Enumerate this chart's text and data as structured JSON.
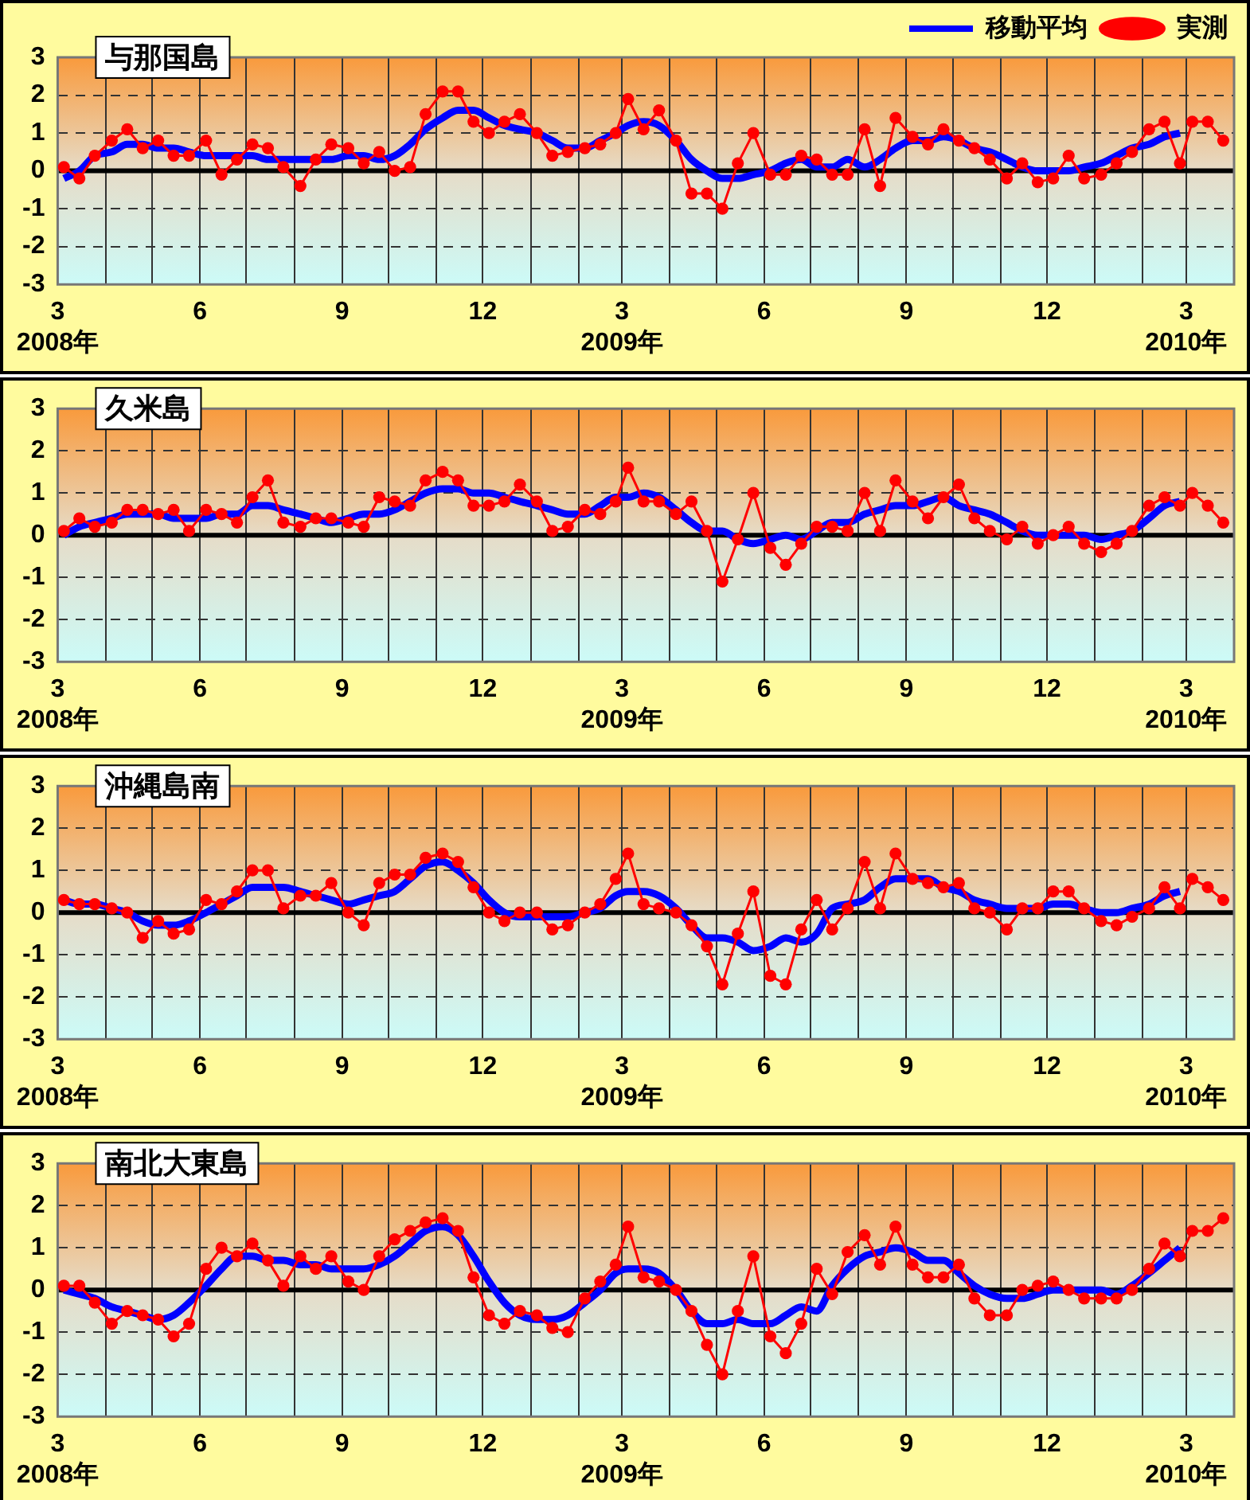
{
  "chart_data": [
    {
      "type": "line",
      "title": "与那国島",
      "legend": "top right",
      "grid": true,
      "x": [
        "2008-03-05",
        "2008-03-15",
        "2008-03-25",
        "2008-04-05",
        "2008-04-15",
        "2008-04-25",
        "2008-05-05",
        "2008-05-15",
        "2008-05-25",
        "2008-06-05",
        "2008-06-15",
        "2008-06-25",
        "2008-07-05",
        "2008-07-15",
        "2008-07-25",
        "2008-08-05",
        "2008-08-15",
        "2008-08-25",
        "2008-09-05",
        "2008-09-15",
        "2008-09-25",
        "2008-10-05",
        "2008-10-15",
        "2008-10-25",
        "2008-11-05",
        "2008-11-15",
        "2008-11-25",
        "2008-12-05",
        "2008-12-15",
        "2008-12-25",
        "2009-01-05",
        "2009-01-15",
        "2009-01-25",
        "2009-02-05",
        "2009-02-15",
        "2009-02-25",
        "2009-03-05",
        "2009-03-15",
        "2009-03-25",
        "2009-04-05",
        "2009-04-15",
        "2009-04-25",
        "2009-05-05",
        "2009-05-15",
        "2009-05-25",
        "2009-06-05",
        "2009-06-15",
        "2009-06-25",
        "2009-07-05",
        "2009-07-15",
        "2009-07-25",
        "2009-08-05",
        "2009-08-15",
        "2009-08-25",
        "2009-09-05",
        "2009-09-15",
        "2009-09-25",
        "2009-10-05",
        "2009-10-15",
        "2009-10-25",
        "2009-11-05",
        "2009-11-15",
        "2009-11-25",
        "2009-12-05",
        "2009-12-15",
        "2009-12-25",
        "2010-01-05",
        "2010-01-15",
        "2010-01-25",
        "2010-02-05",
        "2010-02-15",
        "2010-02-25",
        "2010-03-05",
        "2010-03-15",
        "2010-03-25"
      ],
      "xlim": [
        "2008-03-01",
        "2010-04-01"
      ],
      "xticks": [
        {
          "value": "2008-03-01",
          "label": "3\n2008年"
        },
        {
          "value": "2008-04-01",
          "label": null
        },
        {
          "value": "2008-05-01",
          "label": null
        },
        {
          "value": "2008-06-01",
          "label": "6"
        },
        {
          "value": "2008-07-01",
          "label": null
        },
        {
          "value": "2008-08-01",
          "label": null
        },
        {
          "value": "2008-09-01",
          "label": "9"
        },
        {
          "value": "2008-10-01",
          "label": null
        },
        {
          "value": "2008-11-01",
          "label": null
        },
        {
          "value": "2008-12-01",
          "label": "12"
        },
        {
          "value": "2009-01-01",
          "label": null
        },
        {
          "value": "2009-02-01",
          "label": null
        },
        {
          "value": "2009-03-01",
          "label": "3\n2009年"
        },
        {
          "value": "2009-04-01",
          "label": null
        },
        {
          "value": "2009-05-01",
          "label": null
        },
        {
          "value": "2009-06-01",
          "label": "6"
        },
        {
          "value": "2009-07-01",
          "label": null
        },
        {
          "value": "2009-08-01",
          "label": null
        },
        {
          "value": "2009-09-01",
          "label": "9"
        },
        {
          "value": "2009-10-01",
          "label": null
        },
        {
          "value": "2009-11-01",
          "label": null
        },
        {
          "value": "2009-12-01",
          "label": "12"
        },
        {
          "value": "2010-01-01",
          "label": null
        },
        {
          "value": "2010-02-01",
          "label": null
        },
        {
          "value": "2010-03-01",
          "label": "3\n2010年"
        },
        {
          "value": "2010-04-01",
          "label": null
        }
      ],
      "ylim": [
        -3,
        3
      ],
      "yticks": [
        -3,
        -2,
        -1,
        0,
        1,
        2,
        3
      ],
      "ref_lines": [
        {
          "axis": "y",
          "value": 0,
          "color": "#000000"
        }
      ],
      "series": [
        {
          "name": "移動平均",
          "type": "line",
          "color": "#0000ff",
          "marker": "none",
          "values": [
            -0.2,
            0.0,
            0.4,
            0.5,
            0.7,
            0.7,
            0.6,
            0.6,
            0.5,
            0.4,
            0.4,
            0.4,
            0.4,
            0.3,
            0.3,
            0.3,
            0.3,
            0.3,
            0.4,
            0.4,
            0.3,
            0.4,
            0.7,
            1.1,
            1.4,
            1.6,
            1.6,
            1.4,
            1.2,
            1.1,
            1.0,
            0.8,
            0.6,
            0.6,
            0.8,
            1.0,
            1.2,
            1.3,
            1.2,
            0.8,
            0.3,
            0.0,
            -0.2,
            -0.2,
            -0.1,
            0.0,
            0.2,
            0.3,
            0.1,
            0.1,
            0.3,
            0.1,
            0.3,
            0.6,
            0.8,
            0.8,
            0.9,
            0.8,
            0.6,
            0.5,
            0.3,
            0.1,
            0.0,
            0.0,
            0.0,
            0.1,
            0.2,
            0.4,
            0.6,
            0.7,
            0.9,
            1.0,
            null,
            null,
            null
          ]
        },
        {
          "name": "実測",
          "type": "line",
          "color": "#ff0000",
          "marker": "circle",
          "values": [
            0.1,
            -0.2,
            0.4,
            0.8,
            1.1,
            0.6,
            0.8,
            0.4,
            0.4,
            0.8,
            -0.1,
            0.3,
            0.7,
            0.6,
            0.1,
            -0.4,
            0.3,
            0.7,
            0.6,
            0.2,
            0.5,
            0.0,
            0.1,
            1.5,
            2.1,
            2.1,
            1.3,
            1.0,
            1.3,
            1.5,
            1.0,
            0.4,
            0.5,
            0.6,
            0.7,
            1.0,
            1.9,
            1.1,
            1.6,
            0.8,
            -0.6,
            -0.6,
            -1.0,
            0.2,
            1.0,
            -0.1,
            -0.1,
            0.4,
            0.3,
            -0.1,
            -0.1,
            1.1,
            -0.4,
            1.4,
            0.9,
            0.7,
            1.1,
            0.8,
            0.6,
            0.3,
            -0.2,
            0.2,
            -0.3,
            -0.2,
            0.4,
            -0.2,
            -0.1,
            0.2,
            0.5,
            1.1,
            1.3,
            0.2,
            1.3,
            1.3,
            0.8
          ]
        }
      ]
    },
    {
      "type": "line",
      "title": "久米島",
      "grid": true,
      "x": [
        "2008-03-05",
        "2008-03-15",
        "2008-03-25",
        "2008-04-05",
        "2008-04-15",
        "2008-04-25",
        "2008-05-05",
        "2008-05-15",
        "2008-05-25",
        "2008-06-05",
        "2008-06-15",
        "2008-06-25",
        "2008-07-05",
        "2008-07-15",
        "2008-07-25",
        "2008-08-05",
        "2008-08-15",
        "2008-08-25",
        "2008-09-05",
        "2008-09-15",
        "2008-09-25",
        "2008-10-05",
        "2008-10-15",
        "2008-10-25",
        "2008-11-05",
        "2008-11-15",
        "2008-11-25",
        "2008-12-05",
        "2008-12-15",
        "2008-12-25",
        "2009-01-05",
        "2009-01-15",
        "2009-01-25",
        "2009-02-05",
        "2009-02-15",
        "2009-02-25",
        "2009-03-05",
        "2009-03-15",
        "2009-03-25",
        "2009-04-05",
        "2009-04-15",
        "2009-04-25",
        "2009-05-05",
        "2009-05-15",
        "2009-05-25",
        "2009-06-05",
        "2009-06-15",
        "2009-06-25",
        "2009-07-05",
        "2009-07-15",
        "2009-07-25",
        "2009-08-05",
        "2009-08-15",
        "2009-08-25",
        "2009-09-05",
        "2009-09-15",
        "2009-09-25",
        "2009-10-05",
        "2009-10-15",
        "2009-10-25",
        "2009-11-05",
        "2009-11-15",
        "2009-11-25",
        "2009-12-05",
        "2009-12-15",
        "2009-12-25",
        "2010-01-05",
        "2010-01-15",
        "2010-01-25",
        "2010-02-05",
        "2010-02-15",
        "2010-02-25",
        "2010-03-05",
        "2010-03-15",
        "2010-03-25"
      ],
      "xlim": [
        "2008-03-01",
        "2010-04-01"
      ],
      "xticks": [
        {
          "value": "2008-03-01",
          "label": "3\n2008年"
        },
        {
          "value": "2008-04-01",
          "label": null
        },
        {
          "value": "2008-05-01",
          "label": null
        },
        {
          "value": "2008-06-01",
          "label": "6"
        },
        {
          "value": "2008-07-01",
          "label": null
        },
        {
          "value": "2008-08-01",
          "label": null
        },
        {
          "value": "2008-09-01",
          "label": "9"
        },
        {
          "value": "2008-10-01",
          "label": null
        },
        {
          "value": "2008-11-01",
          "label": null
        },
        {
          "value": "2008-12-01",
          "label": "12"
        },
        {
          "value": "2009-01-01",
          "label": null
        },
        {
          "value": "2009-02-01",
          "label": null
        },
        {
          "value": "2009-03-01",
          "label": "3\n2009年"
        },
        {
          "value": "2009-04-01",
          "label": null
        },
        {
          "value": "2009-05-01",
          "label": null
        },
        {
          "value": "2009-06-01",
          "label": "6"
        },
        {
          "value": "2009-07-01",
          "label": null
        },
        {
          "value": "2009-08-01",
          "label": null
        },
        {
          "value": "2009-09-01",
          "label": "9"
        },
        {
          "value": "2009-10-01",
          "label": null
        },
        {
          "value": "2009-11-01",
          "label": null
        },
        {
          "value": "2009-12-01",
          "label": "12"
        },
        {
          "value": "2010-01-01",
          "label": null
        },
        {
          "value": "2010-02-01",
          "label": null
        },
        {
          "value": "2010-03-01",
          "label": "3\n2010年"
        },
        {
          "value": "2010-04-01",
          "label": null
        }
      ],
      "ylim": [
        -3,
        3
      ],
      "yticks": [
        -3,
        -2,
        -1,
        0,
        1,
        2,
        3
      ],
      "ref_lines": [
        {
          "axis": "y",
          "value": 0,
          "color": "#000000"
        }
      ],
      "series": [
        {
          "type": "line",
          "color": "#0000ff",
          "marker": "none",
          "values": [
            0.0,
            0.2,
            0.3,
            0.4,
            0.5,
            0.5,
            0.5,
            0.4,
            0.4,
            0.4,
            0.5,
            0.5,
            0.7,
            0.7,
            0.6,
            0.5,
            0.4,
            0.3,
            0.4,
            0.5,
            0.5,
            0.6,
            0.8,
            1.0,
            1.1,
            1.1,
            1.0,
            1.0,
            0.9,
            0.8,
            0.7,
            0.6,
            0.5,
            0.5,
            0.7,
            0.9,
            0.9,
            1.0,
            0.9,
            0.6,
            0.3,
            0.1,
            0.1,
            -0.1,
            -0.2,
            -0.1,
            0.0,
            -0.1,
            0.1,
            0.3,
            0.3,
            0.5,
            0.6,
            0.7,
            0.7,
            0.8,
            0.9,
            0.7,
            0.6,
            0.5,
            0.3,
            0.1,
            0.0,
            0.0,
            0.0,
            0.0,
            -0.1,
            0.0,
            0.1,
            0.4,
            0.7,
            0.8,
            null,
            null,
            null
          ]
        },
        {
          "type": "line",
          "color": "#ff0000",
          "marker": "circle",
          "values": [
            0.1,
            0.4,
            0.2,
            0.3,
            0.6,
            0.6,
            0.5,
            0.6,
            0.1,
            0.6,
            0.5,
            0.3,
            0.9,
            1.3,
            0.3,
            0.2,
            0.4,
            0.4,
            0.3,
            0.2,
            0.9,
            0.8,
            0.7,
            1.3,
            1.5,
            1.3,
            0.7,
            0.7,
            0.8,
            1.2,
            0.8,
            0.1,
            0.2,
            0.6,
            0.5,
            0.8,
            1.6,
            0.8,
            0.8,
            0.5,
            0.8,
            0.1,
            -1.1,
            -0.1,
            1.0,
            -0.3,
            -0.7,
            -0.2,
            0.2,
            0.2,
            0.1,
            1.0,
            0.1,
            1.3,
            0.8,
            0.4,
            0.9,
            1.2,
            0.4,
            0.1,
            -0.1,
            0.2,
            -0.2,
            0.0,
            0.2,
            -0.2,
            -0.4,
            -0.2,
            0.1,
            0.7,
            0.9,
            0.7,
            1.0,
            0.7,
            0.3
          ]
        }
      ]
    },
    {
      "type": "line",
      "title": "沖縄島南",
      "grid": true,
      "x": [
        "2008-03-05",
        "2008-03-15",
        "2008-03-25",
        "2008-04-05",
        "2008-04-15",
        "2008-04-25",
        "2008-05-05",
        "2008-05-15",
        "2008-05-25",
        "2008-06-05",
        "2008-06-15",
        "2008-06-25",
        "2008-07-05",
        "2008-07-15",
        "2008-07-25",
        "2008-08-05",
        "2008-08-15",
        "2008-08-25",
        "2008-09-05",
        "2008-09-15",
        "2008-09-25",
        "2008-10-05",
        "2008-10-15",
        "2008-10-25",
        "2008-11-05",
        "2008-11-15",
        "2008-11-25",
        "2008-12-05",
        "2008-12-15",
        "2008-12-25",
        "2009-01-05",
        "2009-01-15",
        "2009-01-25",
        "2009-02-05",
        "2009-02-15",
        "2009-02-25",
        "2009-03-05",
        "2009-03-15",
        "2009-03-25",
        "2009-04-05",
        "2009-04-15",
        "2009-04-25",
        "2009-05-05",
        "2009-05-15",
        "2009-05-25",
        "2009-06-05",
        "2009-06-15",
        "2009-06-25",
        "2009-07-05",
        "2009-07-15",
        "2009-07-25",
        "2009-08-05",
        "2009-08-15",
        "2009-08-25",
        "2009-09-05",
        "2009-09-15",
        "2009-09-25",
        "2009-10-05",
        "2009-10-15",
        "2009-10-25",
        "2009-11-05",
        "2009-11-15",
        "2009-11-25",
        "2009-12-05",
        "2009-12-15",
        "2009-12-25",
        "2010-01-05",
        "2010-01-15",
        "2010-01-25",
        "2010-02-05",
        "2010-02-15",
        "2010-02-25",
        "2010-03-05",
        "2010-03-15",
        "2010-03-25"
      ],
      "xlim": [
        "2008-03-01",
        "2010-04-01"
      ],
      "xticks": [
        {
          "value": "2008-03-01",
          "label": "3\n2008年"
        },
        {
          "value": "2008-04-01",
          "label": null
        },
        {
          "value": "2008-05-01",
          "label": null
        },
        {
          "value": "2008-06-01",
          "label": "6"
        },
        {
          "value": "2008-07-01",
          "label": null
        },
        {
          "value": "2008-08-01",
          "label": null
        },
        {
          "value": "2008-09-01",
          "label": "9"
        },
        {
          "value": "2008-10-01",
          "label": null
        },
        {
          "value": "2008-11-01",
          "label": null
        },
        {
          "value": "2008-12-01",
          "label": "12"
        },
        {
          "value": "2009-01-01",
          "label": null
        },
        {
          "value": "2009-02-01",
          "label": null
        },
        {
          "value": "2009-03-01",
          "label": "3\n2009年"
        },
        {
          "value": "2009-04-01",
          "label": null
        },
        {
          "value": "2009-05-01",
          "label": null
        },
        {
          "value": "2009-06-01",
          "label": "6"
        },
        {
          "value": "2009-07-01",
          "label": null
        },
        {
          "value": "2009-08-01",
          "label": null
        },
        {
          "value": "2009-09-01",
          "label": "9"
        },
        {
          "value": "2009-10-01",
          "label": null
        },
        {
          "value": "2009-11-01",
          "label": null
        },
        {
          "value": "2009-12-01",
          "label": "12"
        },
        {
          "value": "2010-01-01",
          "label": null
        },
        {
          "value": "2010-02-01",
          "label": null
        },
        {
          "value": "2010-03-01",
          "label": "3\n2010年"
        },
        {
          "value": "2010-04-01",
          "label": null
        }
      ],
      "ylim": [
        -3,
        3
      ],
      "yticks": [
        -3,
        -2,
        -1,
        0,
        1,
        2,
        3
      ],
      "ref_lines": [
        {
          "axis": "y",
          "value": 0,
          "color": "#000000"
        }
      ],
      "series": [
        {
          "type": "line",
          "color": "#0000ff",
          "marker": "none",
          "values": [
            0.3,
            0.2,
            0.2,
            0.1,
            0.0,
            -0.2,
            -0.3,
            -0.3,
            -0.2,
            0.0,
            0.2,
            0.4,
            0.6,
            0.6,
            0.6,
            0.5,
            0.4,
            0.3,
            0.2,
            0.3,
            0.4,
            0.5,
            0.8,
            1.1,
            1.2,
            1.0,
            0.7,
            0.3,
            0.0,
            -0.1,
            -0.1,
            -0.1,
            -0.1,
            0.0,
            0.1,
            0.4,
            0.5,
            0.5,
            0.4,
            0.1,
            -0.3,
            -0.6,
            -0.6,
            -0.7,
            -0.9,
            -0.8,
            -0.6,
            -0.7,
            -0.5,
            0.1,
            0.2,
            0.3,
            0.6,
            0.8,
            0.8,
            0.8,
            0.6,
            0.5,
            0.3,
            0.2,
            0.1,
            0.1,
            0.1,
            0.2,
            0.2,
            0.1,
            0.0,
            0.0,
            0.1,
            0.2,
            0.4,
            0.5,
            null,
            null,
            null
          ]
        },
        {
          "type": "line",
          "color": "#ff0000",
          "marker": "circle",
          "values": [
            0.3,
            0.2,
            0.2,
            0.1,
            0.0,
            -0.6,
            -0.2,
            -0.5,
            -0.4,
            0.3,
            0.2,
            0.5,
            1.0,
            1.0,
            0.1,
            0.4,
            0.4,
            0.7,
            0.0,
            -0.3,
            0.7,
            0.9,
            0.9,
            1.3,
            1.4,
            1.2,
            0.6,
            0.0,
            -0.2,
            0.0,
            0.0,
            -0.4,
            -0.3,
            0.0,
            0.2,
            0.8,
            1.4,
            0.2,
            0.1,
            0.0,
            -0.3,
            -0.8,
            -1.7,
            -0.5,
            0.5,
            -1.5,
            -1.7,
            -0.4,
            0.3,
            -0.4,
            0.1,
            1.2,
            0.1,
            1.4,
            0.8,
            0.7,
            0.6,
            0.7,
            0.1,
            0.0,
            -0.4,
            0.1,
            0.1,
            0.5,
            0.5,
            0.1,
            -0.2,
            -0.3,
            -0.1,
            0.1,
            0.6,
            0.1,
            0.8,
            0.6,
            0.3
          ]
        }
      ]
    },
    {
      "type": "line",
      "title": "南北大東島",
      "grid": true,
      "x": [
        "2008-03-05",
        "2008-03-15",
        "2008-03-25",
        "2008-04-05",
        "2008-04-15",
        "2008-04-25",
        "2008-05-05",
        "2008-05-15",
        "2008-05-25",
        "2008-06-05",
        "2008-06-15",
        "2008-06-25",
        "2008-07-05",
        "2008-07-15",
        "2008-07-25",
        "2008-08-05",
        "2008-08-15",
        "2008-08-25",
        "2008-09-05",
        "2008-09-15",
        "2008-09-25",
        "2008-10-05",
        "2008-10-15",
        "2008-10-25",
        "2008-11-05",
        "2008-11-15",
        "2008-11-25",
        "2008-12-05",
        "2008-12-15",
        "2008-12-25",
        "2009-01-05",
        "2009-01-15",
        "2009-01-25",
        "2009-02-05",
        "2009-02-15",
        "2009-02-25",
        "2009-03-05",
        "2009-03-15",
        "2009-03-25",
        "2009-04-05",
        "2009-04-15",
        "2009-04-25",
        "2009-05-05",
        "2009-05-15",
        "2009-05-25",
        "2009-06-05",
        "2009-06-15",
        "2009-06-25",
        "2009-07-05",
        "2009-07-15",
        "2009-07-25",
        "2009-08-05",
        "2009-08-15",
        "2009-08-25",
        "2009-09-05",
        "2009-09-15",
        "2009-09-25",
        "2009-10-05",
        "2009-10-15",
        "2009-10-25",
        "2009-11-05",
        "2009-11-15",
        "2009-11-25",
        "2009-12-05",
        "2009-12-15",
        "2009-12-25",
        "2010-01-05",
        "2010-01-15",
        "2010-01-25",
        "2010-02-05",
        "2010-02-15",
        "2010-02-25",
        "2010-03-05",
        "2010-03-15",
        "2010-03-25"
      ],
      "xlim": [
        "2008-03-01",
        "2010-04-01"
      ],
      "xticks": [
        {
          "value": "2008-03-01",
          "label": "3\n2008年"
        },
        {
          "value": "2008-04-01",
          "label": null
        },
        {
          "value": "2008-05-01",
          "label": null
        },
        {
          "value": "2008-06-01",
          "label": "6"
        },
        {
          "value": "2008-07-01",
          "label": null
        },
        {
          "value": "2008-08-01",
          "label": null
        },
        {
          "value": "2008-09-01",
          "label": "9"
        },
        {
          "value": "2008-10-01",
          "label": null
        },
        {
          "value": "2008-11-01",
          "label": null
        },
        {
          "value": "2008-12-01",
          "label": "12"
        },
        {
          "value": "2009-01-01",
          "label": null
        },
        {
          "value": "2009-02-01",
          "label": null
        },
        {
          "value": "2009-03-01",
          "label": "3\n2009年"
        },
        {
          "value": "2009-04-01",
          "label": null
        },
        {
          "value": "2009-05-01",
          "label": null
        },
        {
          "value": "2009-06-01",
          "label": "6"
        },
        {
          "value": "2009-07-01",
          "label": null
        },
        {
          "value": "2009-08-01",
          "label": null
        },
        {
          "value": "2009-09-01",
          "label": "9"
        },
        {
          "value": "2009-10-01",
          "label": null
        },
        {
          "value": "2009-11-01",
          "label": null
        },
        {
          "value": "2009-12-01",
          "label": "12"
        },
        {
          "value": "2010-01-01",
          "label": null
        },
        {
          "value": "2010-02-01",
          "label": null
        },
        {
          "value": "2010-03-01",
          "label": "3\n2010年"
        },
        {
          "value": "2010-04-01",
          "label": null
        }
      ],
      "ylim": [
        -3,
        3
      ],
      "yticks": [
        -3,
        -2,
        -1,
        0,
        1,
        2,
        3
      ],
      "ref_lines": [
        {
          "axis": "y",
          "value": 0,
          "color": "#000000"
        }
      ],
      "series": [
        {
          "type": "line",
          "color": "#0000ff",
          "marker": "none",
          "values": [
            0.0,
            -0.1,
            -0.2,
            -0.4,
            -0.5,
            -0.6,
            -0.7,
            -0.6,
            -0.3,
            0.1,
            0.5,
            0.8,
            0.8,
            0.7,
            0.7,
            0.6,
            0.6,
            0.5,
            0.5,
            0.5,
            0.6,
            0.8,
            1.1,
            1.4,
            1.5,
            1.3,
            0.8,
            0.2,
            -0.3,
            -0.6,
            -0.7,
            -0.7,
            -0.6,
            -0.3,
            0.0,
            0.4,
            0.5,
            0.5,
            0.4,
            0.0,
            -0.5,
            -0.8,
            -0.8,
            -0.7,
            -0.8,
            -0.8,
            -0.6,
            -0.4,
            -0.5,
            0.1,
            0.5,
            0.8,
            0.9,
            1.0,
            0.9,
            0.7,
            0.7,
            0.4,
            0.1,
            -0.1,
            -0.2,
            -0.2,
            -0.1,
            0.0,
            0.0,
            0.0,
            0.0,
            -0.1,
            0.1,
            0.4,
            0.7,
            1.0,
            null,
            null,
            null
          ]
        },
        {
          "type": "line",
          "color": "#ff0000",
          "marker": "circle",
          "values": [
            0.1,
            0.1,
            -0.3,
            -0.8,
            -0.5,
            -0.6,
            -0.7,
            -1.1,
            -0.8,
            0.5,
            1.0,
            0.8,
            1.1,
            0.7,
            0.1,
            0.8,
            0.5,
            0.8,
            0.2,
            0.0,
            0.8,
            1.2,
            1.4,
            1.6,
            1.7,
            1.4,
            0.3,
            -0.6,
            -0.8,
            -0.5,
            -0.6,
            -0.9,
            -1.0,
            -0.2,
            0.2,
            0.6,
            1.5,
            0.3,
            0.2,
            0.0,
            -0.5,
            -1.3,
            -2.0,
            -0.5,
            0.8,
            -1.1,
            -1.5,
            -0.8,
            0.5,
            -0.1,
            0.9,
            1.3,
            0.6,
            1.5,
            0.6,
            0.3,
            0.3,
            0.6,
            -0.2,
            -0.6,
            -0.6,
            0.0,
            0.1,
            0.2,
            0.0,
            -0.2,
            -0.2,
            -0.2,
            0.0,
            0.5,
            1.1,
            0.8,
            1.4,
            1.4,
            1.7
          ]
        }
      ]
    }
  ]
}
